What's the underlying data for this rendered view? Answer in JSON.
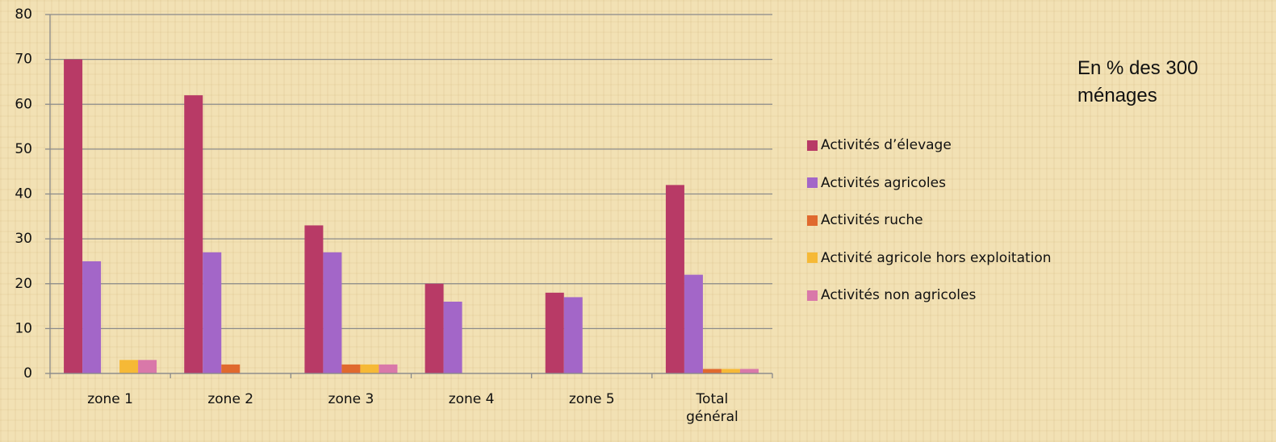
{
  "chart_data": {
    "type": "bar",
    "annotation": "En % des 300 ménages",
    "categories": [
      "zone 1",
      "zone 2",
      "zone 3",
      "zone 4",
      "zone 5",
      "Total général"
    ],
    "series": [
      {
        "name": "Activités d’élevage",
        "color": "#b83a66",
        "values": [
          70,
          62,
          33,
          20,
          18,
          42
        ]
      },
      {
        "name": "Activités agricoles",
        "color": "#a366c8",
        "values": [
          25,
          27,
          27,
          16,
          17,
          22
        ]
      },
      {
        "name": "Activités ruche",
        "color": "#e0692e",
        "values": [
          0,
          2,
          2,
          0,
          0,
          1
        ]
      },
      {
        "name": "Activité agricole hors exploitation",
        "color": "#f6b936",
        "values": [
          3,
          0,
          2,
          0,
          0,
          1
        ]
      },
      {
        "name": "Activités non agricoles",
        "color": "#d978a9",
        "values": [
          3,
          0,
          2,
          0,
          0,
          1
        ]
      }
    ],
    "ylim": [
      0,
      80
    ],
    "yticks": [
      0,
      10,
      20,
      30,
      40,
      50,
      60,
      70,
      80
    ],
    "grid": true,
    "legend": "right"
  }
}
